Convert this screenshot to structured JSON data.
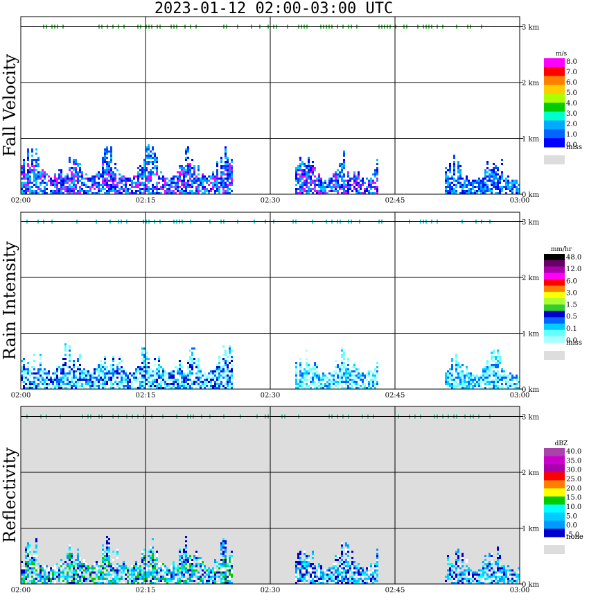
{
  "title": "2023-01-12  02:00-03:00 UTC",
  "chart_data": [
    {
      "type": "heatmap",
      "name": "Fall Velocity",
      "ylabel": "Fall Velocity",
      "xticks": [
        "02:00",
        "02:15",
        "02:30",
        "02:45",
        "03:00"
      ],
      "yticks": [
        "0 km",
        "1 km",
        "2 km",
        "3 km"
      ],
      "ylim_km": [
        0,
        3.1
      ],
      "background": "#ffffff",
      "colorbar": {
        "unit": "m/s",
        "labels": [
          "8.0",
          "7.0",
          "6.0",
          "5.0",
          "4.0",
          "3.0",
          "2.0",
          "1.0",
          "0.0",
          "miss"
        ],
        "colors": [
          "#ff00ff",
          "#ff0000",
          "#ff8000",
          "#ffcc00",
          "#aaff00",
          "#00cc00",
          "#00ffcc",
          "#00aaff",
          "#0066ff",
          "#0000ff",
          "#dddddd"
        ]
      },
      "echo_regions": [
        {
          "start_min": 0,
          "end_min": 25.5,
          "top_km": 0.95,
          "palette": [
            "#0000ff",
            "#0044ff",
            "#0099ff",
            "#00ccff",
            "#ff00ff"
          ]
        },
        {
          "start_min": 33,
          "end_min": 43,
          "top_km": 0.85,
          "palette": [
            "#0000ff",
            "#0044ff",
            "#0099ff",
            "#00ccff",
            "#ff00ff"
          ]
        },
        {
          "start_min": 51,
          "end_min": 60,
          "top_km": 0.8,
          "palette": [
            "#0000ff",
            "#0044ff",
            "#0099ff",
            "#00ccff"
          ]
        }
      ],
      "top_band_color": "#33cc33"
    },
    {
      "type": "heatmap",
      "name": "Rain Intensity",
      "ylabel": "Rain Intensity",
      "xticks": [
        "02:00",
        "02:15",
        "02:30",
        "02:45",
        "03:00"
      ],
      "yticks": [
        "0 km",
        "1 km",
        "2 km",
        "3 km"
      ],
      "ylim_km": [
        0,
        3.1
      ],
      "background": "#ffffff",
      "colorbar": {
        "unit": "mm/hr",
        "labels": [
          "48.0",
          "12.0",
          "6.0",
          "3.0",
          "1.5",
          "0.5",
          "0.1",
          "0.0",
          "miss"
        ],
        "colors": [
          "#000000",
          "#660066",
          "#aa00aa",
          "#ff00ff",
          "#ff0000",
          "#ff8000",
          "#ffff00",
          "#aaff33",
          "#33cc33",
          "#0000cc",
          "#0066ff",
          "#00ccff",
          "#66ffff",
          "#aaffff",
          "#dddddd"
        ]
      },
      "echo_regions": [
        {
          "start_min": 0,
          "end_min": 25.5,
          "top_km": 0.95,
          "palette": [
            "#aaffff",
            "#66ffff",
            "#00ccff",
            "#0066ff",
            "#0000cc"
          ]
        },
        {
          "start_min": 33,
          "end_min": 43,
          "top_km": 0.85,
          "palette": [
            "#aaffff",
            "#66ffff",
            "#00ccff",
            "#0066ff"
          ]
        },
        {
          "start_min": 51,
          "end_min": 60,
          "top_km": 0.8,
          "palette": [
            "#aaffff",
            "#66ffff",
            "#00ccff",
            "#0066ff"
          ]
        }
      ],
      "top_band_color": "#33cccc"
    },
    {
      "type": "heatmap",
      "name": "Reflectivity",
      "ylabel": "Reflectivity",
      "xticks": [
        "02:00",
        "02:15",
        "02:30",
        "02:45",
        "03:00"
      ],
      "yticks": [
        "0 km",
        "1 km",
        "2 km",
        "3 km"
      ],
      "ylim_km": [
        0,
        3.1
      ],
      "background": "#dddddd",
      "colorbar": {
        "unit": "dBZ",
        "labels": [
          "40.0",
          "35.0",
          "30.0",
          "25.0",
          "20.0",
          "15.0",
          "10.0",
          "5.0",
          "0.0",
          "-5.0",
          "none"
        ],
        "colors": [
          "#aa44aa",
          "#cc00cc",
          "#aa00aa",
          "#ff0000",
          "#ff8000",
          "#ffff00",
          "#00cc00",
          "#00ffff",
          "#00ccff",
          "#0099ff",
          "#0000cc",
          "#dddddd"
        ]
      },
      "echo_regions": [
        {
          "start_min": 0,
          "end_min": 25.5,
          "top_km": 0.95,
          "palette": [
            "#ffffff",
            "#0000cc",
            "#0099ff",
            "#00ccff",
            "#00ffff",
            "#00cc00"
          ]
        },
        {
          "start_min": 33,
          "end_min": 43,
          "top_km": 0.85,
          "palette": [
            "#ffffff",
            "#0000cc",
            "#0099ff",
            "#00ccff",
            "#00ffff"
          ]
        },
        {
          "start_min": 51,
          "end_min": 60,
          "top_km": 0.8,
          "palette": [
            "#ffffff",
            "#0000cc",
            "#0099ff",
            "#00ccff",
            "#00ffff"
          ]
        }
      ],
      "top_band_color": "#33cc99"
    }
  ]
}
